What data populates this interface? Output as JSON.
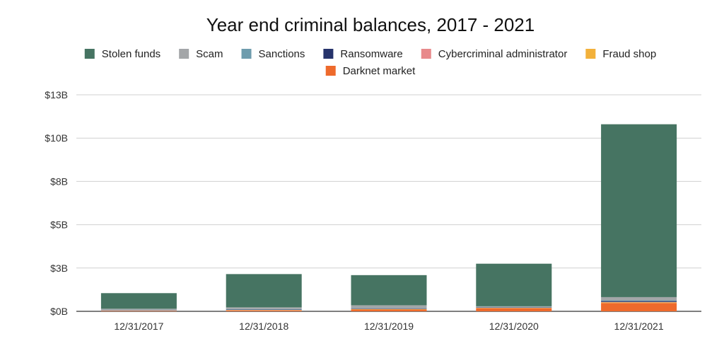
{
  "chart_data": {
    "type": "bar",
    "stacked": true,
    "title": "Year end criminal balances, 2017 - 2021",
    "categories": [
      "12/31/2017",
      "12/31/2018",
      "12/31/2019",
      "12/31/2020",
      "12/31/2021"
    ],
    "y_tick_labels": [
      "$0B",
      "$3B",
      "$5B",
      "$8B",
      "$10B",
      "$13B"
    ],
    "y_tick_values": [
      0,
      2.5,
      5,
      7.5,
      10,
      12.5
    ],
    "ylim": [
      0,
      12.5
    ],
    "y_unit": "billions USD",
    "grid": true,
    "legend_position": "top",
    "series": [
      {
        "name": "Darknet market",
        "color": "#ee6a2c",
        "values": [
          0.02,
          0.05,
          0.1,
          0.18,
          0.48
        ]
      },
      {
        "name": "Fraud shop",
        "color": "#f2b13b",
        "values": [
          0.01,
          0.02,
          0.03,
          0.02,
          0.04
        ]
      },
      {
        "name": "Cybercriminal administrator",
        "color": "#e8898b",
        "values": [
          0.01,
          0.01,
          0.01,
          0.01,
          0.02
        ]
      },
      {
        "name": "Ransomware",
        "color": "#26336b",
        "values": [
          0.01,
          0.02,
          0.02,
          0.02,
          0.05
        ]
      },
      {
        "name": "Sanctions",
        "color": "#6e9cad",
        "values": [
          0.02,
          0.03,
          0.03,
          0.02,
          0.05
        ]
      },
      {
        "name": "Scam",
        "color": "#a3a6a8",
        "values": [
          0.08,
          0.1,
          0.16,
          0.04,
          0.18
        ]
      },
      {
        "name": "Stolen funds",
        "color": "#467462",
        "values": [
          0.9,
          1.92,
          1.74,
          2.46,
          9.98
        ]
      }
    ],
    "legend_order": [
      "Stolen funds",
      "Scam",
      "Sanctions",
      "Ransomware",
      "Cybercriminal administrator",
      "Fraud shop",
      "Darknet market"
    ]
  }
}
